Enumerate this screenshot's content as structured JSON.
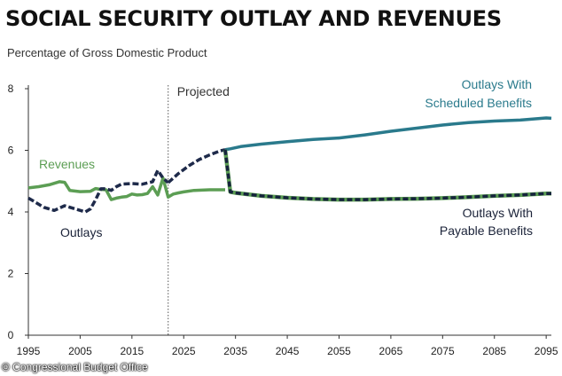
{
  "header": {
    "title": "SOCIAL SECURITY OUTLAY AND REVENUES",
    "subtitle": "Percentage of Gross Domestic Product"
  },
  "footer": {
    "credit": "© Congressional Budget Office"
  },
  "colors": {
    "revenues": "#5c9e54",
    "outlays_historical": "#1e2a4a",
    "scheduled": "#2a7a8c",
    "payable_fill": "#5c9e54",
    "payable_dash": "#16233d",
    "projected_line": "#555555",
    "axis": "#333333"
  },
  "chart_data": {
    "type": "line",
    "title": "SOCIAL SECURITY OUTLAY AND REVENUES",
    "subtitle": "Percentage of Gross Domestic Product",
    "xlim": [
      1995,
      2096
    ],
    "ylim": [
      0,
      8
    ],
    "x_ticks": [
      1995,
      2005,
      2015,
      2025,
      2035,
      2045,
      2055,
      2065,
      2075,
      2085,
      2095
    ],
    "y_ticks": [
      0,
      2,
      4,
      6,
      8
    ],
    "grid": false,
    "projection": {
      "start_year": 2022,
      "label": "Projected"
    },
    "series": [
      {
        "name": "Revenues",
        "style": "solid",
        "x": [
          1995,
          1997,
          1999,
          2001,
          2002,
          2003,
          2005,
          2007,
          2008,
          2009,
          2010,
          2011,
          2012,
          2013,
          2014,
          2015,
          2016,
          2017,
          2018,
          2019,
          2020,
          2021,
          2022,
          2023,
          2024,
          2025,
          2027,
          2030,
          2033
        ],
        "values": [
          4.78,
          4.82,
          4.88,
          4.98,
          4.96,
          4.7,
          4.66,
          4.67,
          4.76,
          4.73,
          4.72,
          4.4,
          4.45,
          4.48,
          4.5,
          4.58,
          4.55,
          4.56,
          4.6,
          4.82,
          4.55,
          5.1,
          4.48,
          4.58,
          4.62,
          4.65,
          4.7,
          4.72,
          4.72
        ]
      },
      {
        "name": "Outlays",
        "style": "dashed",
        "x": [
          1995,
          1996,
          1998,
          2000,
          2002,
          2004,
          2006,
          2007,
          2008,
          2009,
          2010,
          2011,
          2012,
          2013,
          2015,
          2017,
          2019,
          2020,
          2021,
          2022
        ],
        "values": [
          4.45,
          4.35,
          4.15,
          4.05,
          4.2,
          4.1,
          4.0,
          4.1,
          4.4,
          4.75,
          4.75,
          4.7,
          4.82,
          4.9,
          4.92,
          4.9,
          4.98,
          5.35,
          5.1,
          4.95
        ]
      },
      {
        "name": "Outlays With Scheduled Benefits",
        "style": "dashed-then-solid",
        "x": [
          2022,
          2024,
          2026,
          2028,
          2030,
          2032,
          2033,
          2034,
          2036,
          2040,
          2045,
          2050,
          2055,
          2060,
          2065,
          2070,
          2075,
          2080,
          2085,
          2090,
          2095,
          2096
        ],
        "values": [
          4.95,
          5.25,
          5.5,
          5.7,
          5.85,
          5.98,
          6.02,
          6.05,
          6.12,
          6.2,
          6.28,
          6.35,
          6.4,
          6.5,
          6.62,
          6.72,
          6.82,
          6.9,
          6.95,
          6.98,
          7.05,
          7.04
        ]
      },
      {
        "name": "Outlays With Payable Benefits",
        "style": "green-with-dark-dash",
        "x": [
          2033,
          2034,
          2035,
          2040,
          2045,
          2050,
          2055,
          2060,
          2065,
          2070,
          2075,
          2080,
          2085,
          2090,
          2095,
          2096
        ],
        "values": [
          6.02,
          4.65,
          4.62,
          4.52,
          4.46,
          4.42,
          4.4,
          4.4,
          4.42,
          4.43,
          4.45,
          4.48,
          4.52,
          4.55,
          4.6,
          4.6
        ]
      }
    ],
    "labels": {
      "projected": "Projected",
      "revenues": "Revenues",
      "outlays": "Outlays",
      "scheduled_line1": "Outlays With",
      "scheduled_line2": "Scheduled Benefits",
      "payable_line1": "Outlays With",
      "payable_line2": "Payable Benefits"
    }
  }
}
